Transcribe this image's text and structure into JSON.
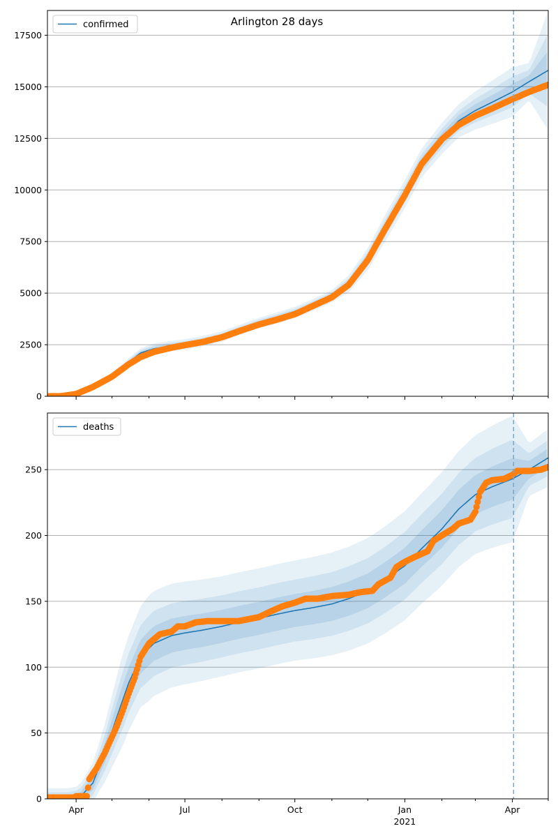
{
  "title": "Arlington 28 days",
  "colors": {
    "model_line": "#1f77b4",
    "observed": "#ff7f0e",
    "band": "#1f77b4",
    "forecast_line": "#7aa6c6",
    "grid": "#b0b0b0"
  },
  "x_axis": {
    "ticks": [
      {
        "date": "2020-04-01",
        "label": "Apr",
        "sublabel": ""
      },
      {
        "date": "2020-07-01",
        "label": "Jul",
        "sublabel": ""
      },
      {
        "date": "2020-10-01",
        "label": "Oct",
        "sublabel": ""
      },
      {
        "date": "2021-01-01",
        "label": "Jan",
        "sublabel": "2021"
      },
      {
        "date": "2021-04-01",
        "label": "Apr",
        "sublabel": ""
      }
    ],
    "minor_ticks": [
      "2020-05-01",
      "2020-06-01",
      "2020-08-01",
      "2020-09-01",
      "2020-11-01",
      "2020-12-01",
      "2021-02-01",
      "2021-03-01",
      "2021-05-01"
    ],
    "range": [
      "2020-03-08",
      "2021-05-01"
    ]
  },
  "chart_data": [
    {
      "type": "line",
      "legend": "confirmed",
      "legend_position": "upper-left",
      "grid": "horizontal",
      "ylim": [
        0,
        18700
      ],
      "y_ticks": [
        0,
        2500,
        5000,
        7500,
        10000,
        12500,
        15000,
        17500
      ],
      "forecast_start": "2021-04-02",
      "model": [
        [
          "2020-03-08",
          0
        ],
        [
          "2020-03-20",
          20
        ],
        [
          "2020-04-01",
          120
        ],
        [
          "2020-04-15",
          450
        ],
        [
          "2020-05-01",
          1000
        ],
        [
          "2020-05-15",
          1650
        ],
        [
          "2020-05-25",
          2100
        ],
        [
          "2020-06-05",
          2300
        ],
        [
          "2020-06-20",
          2440
        ],
        [
          "2020-07-01",
          2520
        ],
        [
          "2020-07-15",
          2660
        ],
        [
          "2020-08-01",
          2900
        ],
        [
          "2020-08-15",
          3200
        ],
        [
          "2020-09-01",
          3550
        ],
        [
          "2020-09-15",
          3780
        ],
        [
          "2020-10-01",
          4060
        ],
        [
          "2020-10-15",
          4400
        ],
        [
          "2020-11-01",
          4850
        ],
        [
          "2020-11-15",
          5450
        ],
        [
          "2020-12-01",
          6650
        ],
        [
          "2020-12-15",
          8100
        ],
        [
          "2021-01-01",
          9800
        ],
        [
          "2021-01-15",
          11300
        ],
        [
          "2021-02-01",
          12500
        ],
        [
          "2021-02-15",
          13350
        ],
        [
          "2021-03-01",
          13850
        ],
        [
          "2021-03-15",
          14250
        ],
        [
          "2021-04-01",
          14750
        ],
        [
          "2021-04-15",
          15250
        ],
        [
          "2021-05-01",
          15800
        ]
      ],
      "band_outer_halfwidth": [
        [
          "2020-03-08",
          0
        ],
        [
          "2020-04-15",
          80
        ],
        [
          "2020-06-01",
          250
        ],
        [
          "2020-09-01",
          250
        ],
        [
          "2020-11-01",
          300
        ],
        [
          "2020-12-15",
          650
        ],
        [
          "2021-01-15",
          700
        ],
        [
          "2021-02-15",
          800
        ],
        [
          "2021-04-01",
          1200
        ],
        [
          "2021-04-15",
          900
        ],
        [
          "2021-05-01",
          2900
        ]
      ],
      "observed": [
        [
          "2020-03-08",
          0
        ],
        [
          "2020-03-20",
          10
        ],
        [
          "2020-04-01",
          110
        ],
        [
          "2020-04-15",
          450
        ],
        [
          "2020-05-01",
          950
        ],
        [
          "2020-05-15",
          1550
        ],
        [
          "2020-05-25",
          1900
        ],
        [
          "2020-06-05",
          2150
        ],
        [
          "2020-06-20",
          2360
        ],
        [
          "2020-07-01",
          2480
        ],
        [
          "2020-07-15",
          2620
        ],
        [
          "2020-08-01",
          2860
        ],
        [
          "2020-08-15",
          3150
        ],
        [
          "2020-09-01",
          3480
        ],
        [
          "2020-09-15",
          3700
        ],
        [
          "2020-10-01",
          3980
        ],
        [
          "2020-10-15",
          4350
        ],
        [
          "2020-11-01",
          4800
        ],
        [
          "2020-11-15",
          5400
        ],
        [
          "2020-12-01",
          6600
        ],
        [
          "2020-12-15",
          8050
        ],
        [
          "2021-01-01",
          9750
        ],
        [
          "2021-01-15",
          11250
        ],
        [
          "2021-02-01",
          12450
        ],
        [
          "2021-02-15",
          13150
        ],
        [
          "2021-03-01",
          13600
        ],
        [
          "2021-03-15",
          13950
        ],
        [
          "2021-04-01",
          14400
        ],
        [
          "2021-04-15",
          14750
        ],
        [
          "2021-05-01",
          15100
        ]
      ]
    },
    {
      "type": "line",
      "legend": "deaths",
      "legend_position": "upper-left",
      "grid": "horizontal",
      "ylim": [
        0,
        293
      ],
      "y_ticks": [
        0,
        50,
        100,
        150,
        200,
        250
      ],
      "forecast_start": "2021-04-02",
      "model": [
        [
          "2020-03-08",
          0
        ],
        [
          "2020-03-25",
          0
        ],
        [
          "2020-04-05",
          2
        ],
        [
          "2020-04-15",
          12
        ],
        [
          "2020-04-25",
          35
        ],
        [
          "2020-05-05",
          62
        ],
        [
          "2020-05-15",
          88
        ],
        [
          "2020-05-25",
          108
        ],
        [
          "2020-06-05",
          118
        ],
        [
          "2020-06-20",
          124
        ],
        [
          "2020-07-01",
          126
        ],
        [
          "2020-07-15",
          128
        ],
        [
          "2020-08-01",
          131
        ],
        [
          "2020-08-15",
          134
        ],
        [
          "2020-09-01",
          137
        ],
        [
          "2020-09-15",
          140
        ],
        [
          "2020-10-01",
          143
        ],
        [
          "2020-10-15",
          145
        ],
        [
          "2020-11-01",
          148
        ],
        [
          "2020-11-15",
          152
        ],
        [
          "2020-12-01",
          158
        ],
        [
          "2020-12-15",
          166
        ],
        [
          "2021-01-01",
          177
        ],
        [
          "2021-01-15",
          190
        ],
        [
          "2021-02-01",
          205
        ],
        [
          "2021-02-15",
          220
        ],
        [
          "2021-03-01",
          231
        ],
        [
          "2021-03-15",
          237
        ],
        [
          "2021-04-01",
          243
        ],
        [
          "2021-04-15",
          250
        ],
        [
          "2021-05-01",
          259
        ]
      ],
      "band_outer_halfwidth": [
        [
          "2020-03-08",
          8
        ],
        [
          "2020-04-01",
          8
        ],
        [
          "2020-04-20",
          18
        ],
        [
          "2020-05-10",
          35
        ],
        [
          "2020-06-01",
          40
        ],
        [
          "2020-08-01",
          38
        ],
        [
          "2020-10-01",
          38
        ],
        [
          "2020-12-01",
          40
        ],
        [
          "2021-01-15",
          42
        ],
        [
          "2021-03-01",
          45
        ],
        [
          "2021-04-01",
          48
        ],
        [
          "2021-04-15",
          20
        ],
        [
          "2021-05-01",
          22
        ]
      ],
      "observed": [
        [
          "2020-03-08",
          1
        ],
        [
          "2020-03-20",
          1
        ],
        [
          "2020-03-30",
          1
        ],
        [
          "2020-04-01",
          2
        ],
        [
          "2020-04-10",
          2
        ],
        [
          "2020-04-12",
          15
        ],
        [
          "2020-04-18",
          23
        ],
        [
          "2020-04-25",
          35
        ],
        [
          "2020-05-01",
          47
        ],
        [
          "2020-05-05",
          55
        ],
        [
          "2020-05-10",
          67
        ],
        [
          "2020-05-15",
          80
        ],
        [
          "2020-05-20",
          92
        ],
        [
          "2020-05-25",
          108
        ],
        [
          "2020-06-01",
          118
        ],
        [
          "2020-06-10",
          125
        ],
        [
          "2020-06-20",
          127
        ],
        [
          "2020-06-25",
          131
        ],
        [
          "2020-07-01",
          131
        ],
        [
          "2020-07-10",
          134
        ],
        [
          "2020-07-20",
          135
        ],
        [
          "2020-08-01",
          135
        ],
        [
          "2020-08-15",
          135
        ],
        [
          "2020-09-01",
          138
        ],
        [
          "2020-09-10",
          142
        ],
        [
          "2020-09-20",
          146
        ],
        [
          "2020-10-01",
          149
        ],
        [
          "2020-10-10",
          152
        ],
        [
          "2020-10-20",
          152
        ],
        [
          "2020-11-01",
          154
        ],
        [
          "2020-11-15",
          155
        ],
        [
          "2020-11-25",
          157
        ],
        [
          "2020-12-05",
          158
        ],
        [
          "2020-12-10",
          163
        ],
        [
          "2020-12-20",
          168
        ],
        [
          "2020-12-25",
          176
        ],
        [
          "2021-01-01",
          180
        ],
        [
          "2021-01-10",
          184
        ],
        [
          "2021-01-20",
          188
        ],
        [
          "2021-01-25",
          196
        ],
        [
          "2021-02-01",
          200
        ],
        [
          "2021-02-10",
          205
        ],
        [
          "2021-02-15",
          209
        ],
        [
          "2021-02-25",
          212
        ],
        [
          "2021-03-01",
          218
        ],
        [
          "2021-03-05",
          233
        ],
        [
          "2021-03-10",
          240
        ],
        [
          "2021-03-15",
          242
        ],
        [
          "2021-03-25",
          243
        ],
        [
          "2021-04-01",
          246
        ],
        [
          "2021-04-05",
          249
        ],
        [
          "2021-04-15",
          249
        ],
        [
          "2021-04-25",
          250
        ],
        [
          "2021-05-01",
          252
        ]
      ]
    }
  ]
}
